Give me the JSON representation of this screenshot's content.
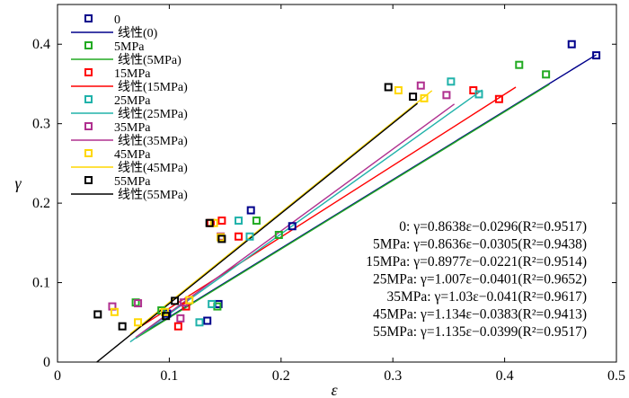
{
  "chart_data": {
    "type": "scatter",
    "title": "",
    "xlabel": "ε",
    "ylabel": "γ",
    "xlim": [
      0,
      0.5
    ],
    "ylim": [
      0,
      0.45
    ],
    "x_ticks": [
      "0",
      "0.1",
      "0.2",
      "0.3",
      "0.4",
      "0.5"
    ],
    "y_ticks": [
      "0",
      "0.1",
      "0.2",
      "0.3",
      "0.4"
    ],
    "series": [
      {
        "name": "0",
        "fit_name": "线性(0)",
        "color": "#00008B",
        "points": [
          [
            0.098,
            0.061
          ],
          [
            0.134,
            0.052
          ],
          [
            0.144,
            0.073
          ],
          [
            0.173,
            0.191
          ],
          [
            0.21,
            0.171
          ],
          [
            0.46,
            0.4
          ],
          [
            0.482,
            0.386
          ]
        ],
        "slope": 0.8638,
        "intercept": -0.0296,
        "fit_range": [
          0.08,
          0.482
        ]
      },
      {
        "name": "5MPa",
        "fit_name": "线性(5MPa)",
        "color": "#22AA22",
        "points": [
          [
            0.07,
            0.075
          ],
          [
            0.093,
            0.065
          ],
          [
            0.143,
            0.07
          ],
          [
            0.178,
            0.178
          ],
          [
            0.198,
            0.16
          ],
          [
            0.413,
            0.374
          ],
          [
            0.437,
            0.362
          ]
        ],
        "slope": 0.8636,
        "intercept": -0.0305,
        "fit_range": [
          0.07,
          0.44
        ]
      },
      {
        "name": "15MPa",
        "fit_name": "线性(15MPa)",
        "color": "#FF0000",
        "points": [
          [
            0.108,
            0.045
          ],
          [
            0.115,
            0.07
          ],
          [
            0.137,
            0.175
          ],
          [
            0.147,
            0.178
          ],
          [
            0.162,
            0.158
          ],
          [
            0.372,
            0.342
          ],
          [
            0.395,
            0.331
          ]
        ],
        "slope": 0.8977,
        "intercept": -0.0221,
        "fit_range": [
          0.07,
          0.41
        ]
      },
      {
        "name": "25MPa",
        "fit_name": "线性(25MPa)",
        "color": "#20B2AA",
        "points": [
          [
            0.127,
            0.05
          ],
          [
            0.138,
            0.073
          ],
          [
            0.162,
            0.178
          ],
          [
            0.172,
            0.158
          ],
          [
            0.352,
            0.353
          ],
          [
            0.377,
            0.337
          ]
        ],
        "slope": 1.007,
        "intercept": -0.0401,
        "fit_range": [
          0.065,
          0.38
        ]
      },
      {
        "name": "35MPa",
        "fit_name": "线性(35MPa)",
        "color": "#B0308F",
        "points": [
          [
            0.049,
            0.07
          ],
          [
            0.072,
            0.074
          ],
          [
            0.11,
            0.055
          ],
          [
            0.113,
            0.075
          ],
          [
            0.146,
            0.158
          ],
          [
            0.325,
            0.348
          ],
          [
            0.348,
            0.336
          ]
        ],
        "slope": 1.03,
        "intercept": -0.041,
        "fit_range": [
          0.07,
          0.355
        ]
      },
      {
        "name": "45MPa",
        "fit_name": "线性(45MPa)",
        "color": "#FFD700",
        "points": [
          [
            0.051,
            0.063
          ],
          [
            0.072,
            0.05
          ],
          [
            0.096,
            0.063
          ],
          [
            0.118,
            0.078
          ],
          [
            0.14,
            0.175
          ],
          [
            0.146,
            0.157
          ],
          [
            0.305,
            0.342
          ],
          [
            0.328,
            0.332
          ]
        ],
        "slope": 1.134,
        "intercept": -0.0383,
        "fit_range": [
          0.065,
          0.335
        ]
      },
      {
        "name": "55MPa",
        "fit_name": "线性(55MPa)",
        "color": "#000000",
        "points": [
          [
            0.036,
            0.06
          ],
          [
            0.058,
            0.045
          ],
          [
            0.097,
            0.058
          ],
          [
            0.105,
            0.077
          ],
          [
            0.136,
            0.175
          ],
          [
            0.147,
            0.155
          ],
          [
            0.296,
            0.346
          ],
          [
            0.318,
            0.334
          ]
        ],
        "slope": 1.135,
        "intercept": -0.0399,
        "fit_range": [
          0.035,
          0.322
        ]
      }
    ],
    "equations": [
      "0:  γ=0.8638ε−0.0296(R²=0.9517)",
      "5MPa:  γ=0.8636ε−0.0305(R²=0.9438)",
      "15MPa:  γ=0.8977ε−0.0221(R²=0.9514)",
      "25MPa:  γ=1.007ε−0.0401(R²=0.9652)",
      "35MPa:  γ=1.03ε−0.041(R²=0.9617)",
      "45MPa:  γ=1.134ε−0.0383(R²=0.9413)",
      "55MPa:  γ=1.135ε−0.0399(R²=0.9517)"
    ]
  }
}
